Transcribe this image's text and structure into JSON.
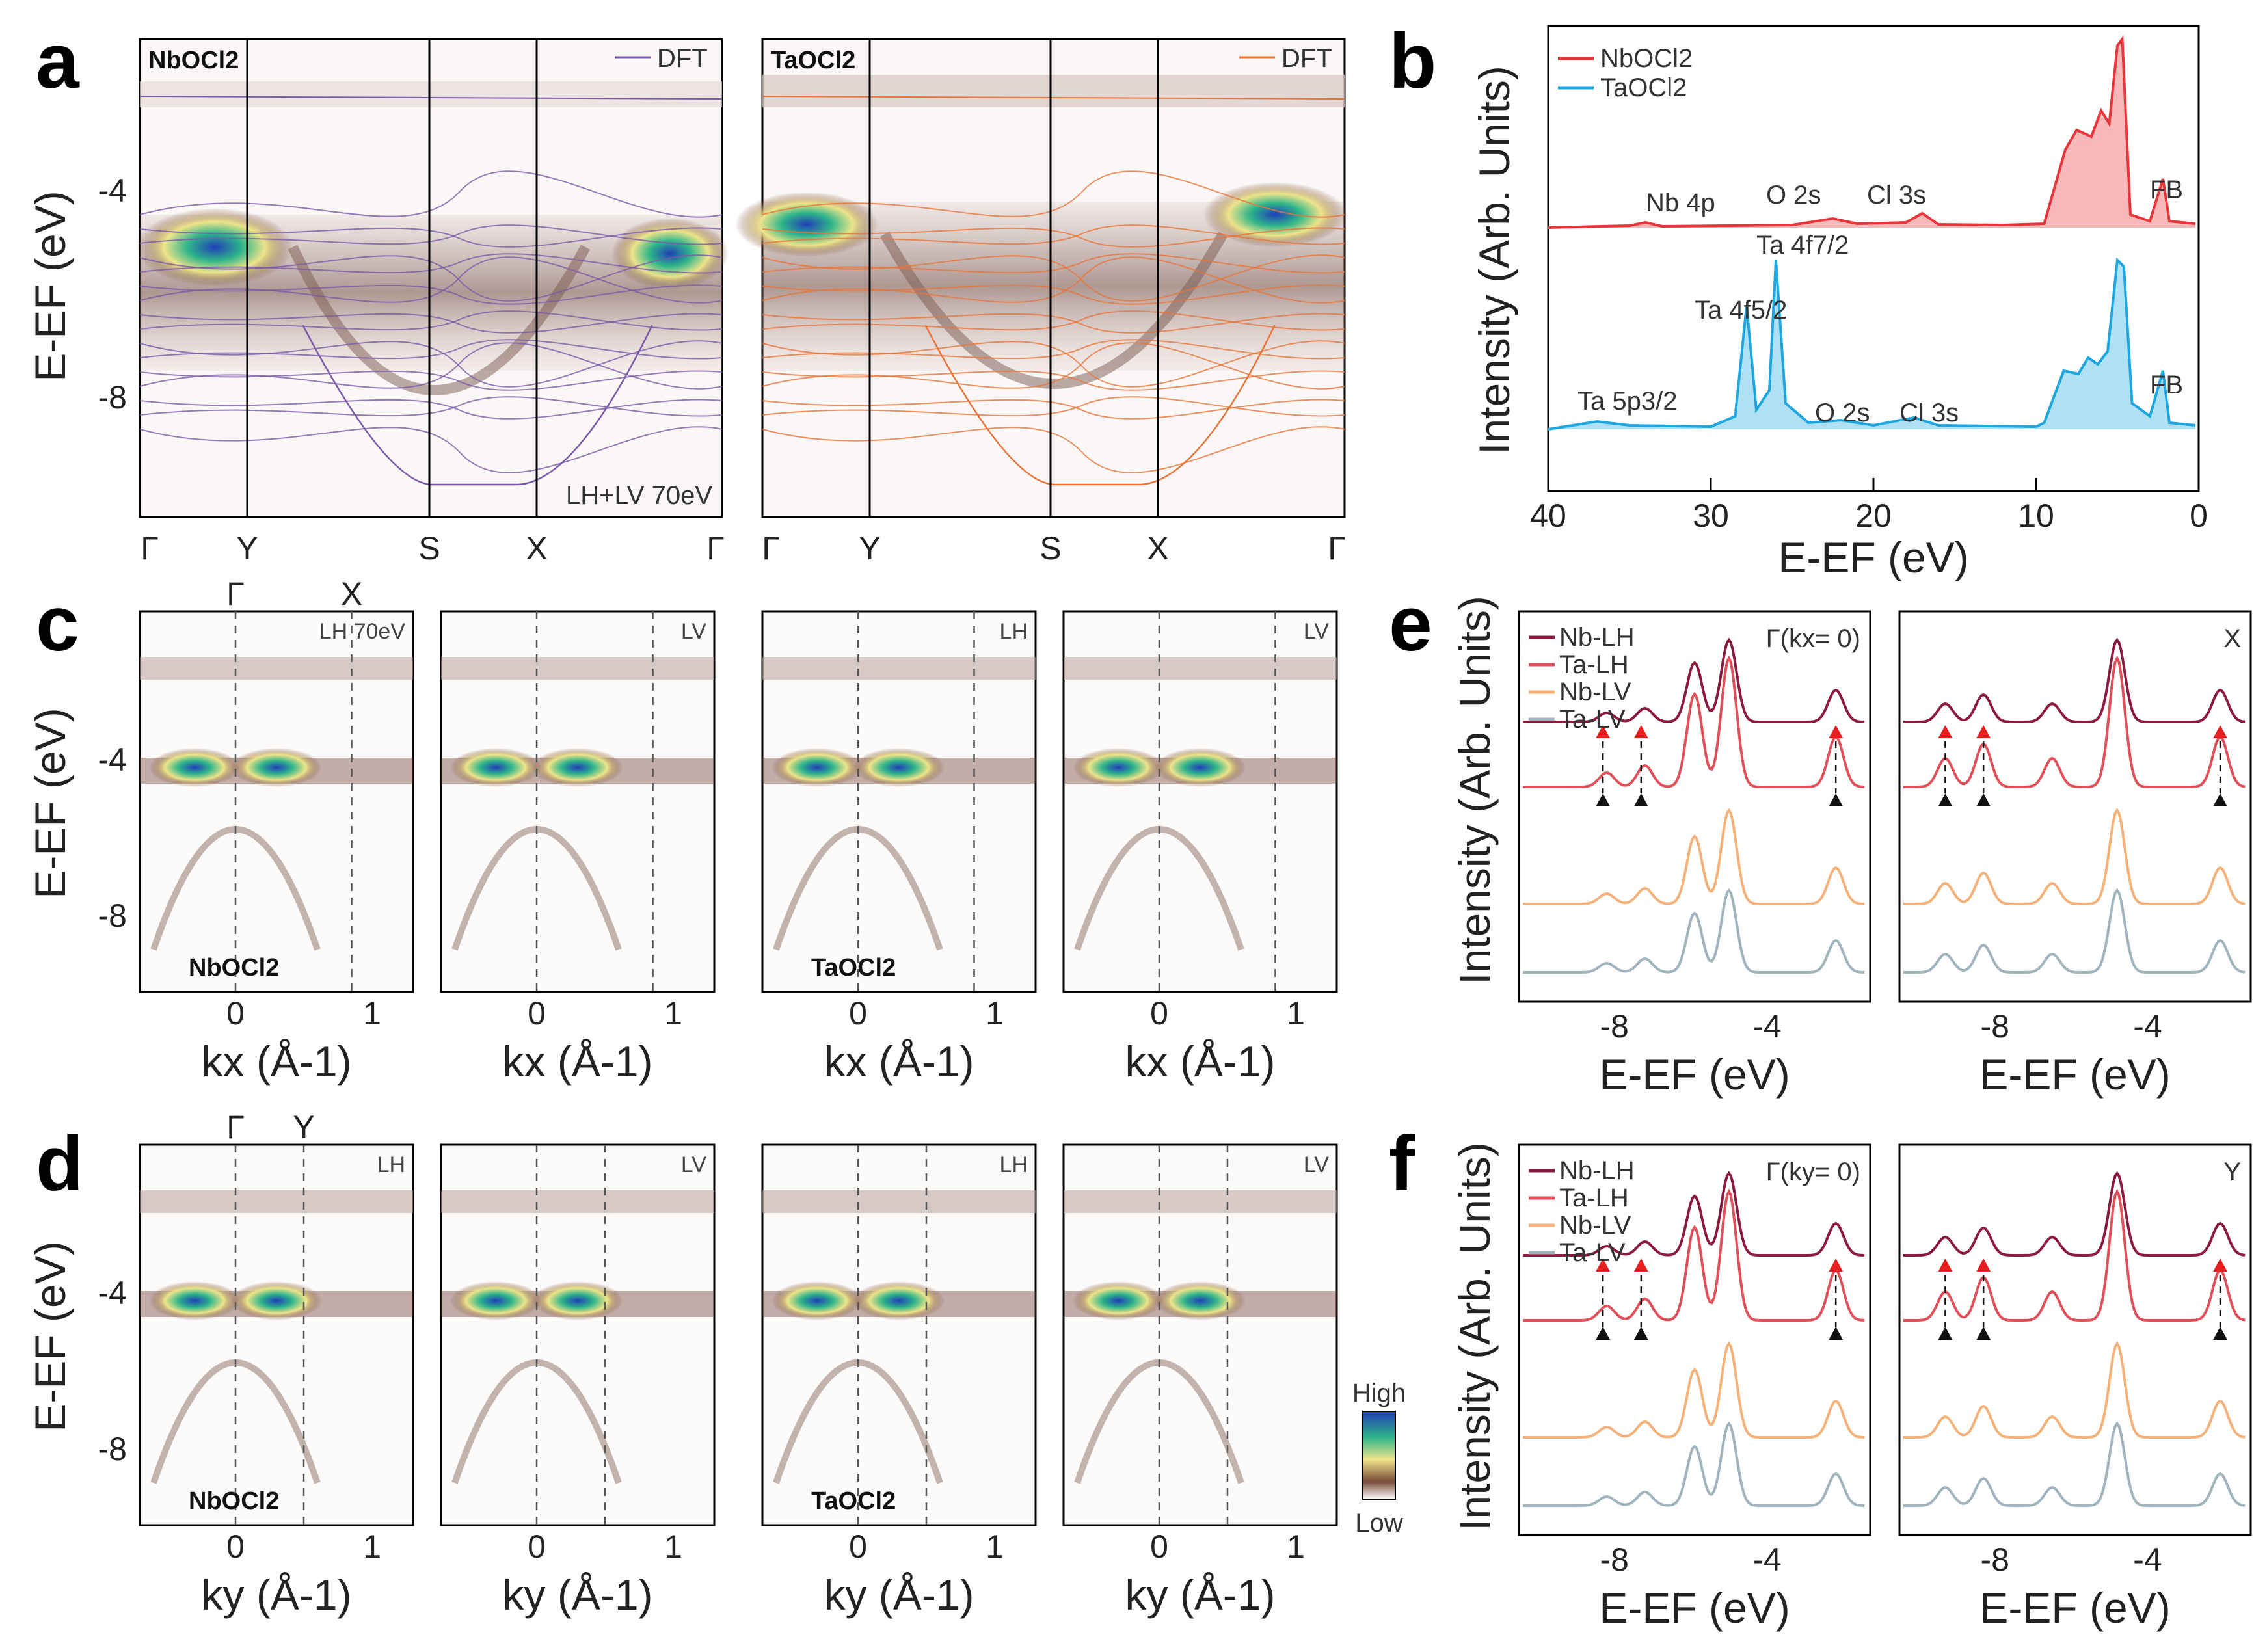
{
  "panel_labels": {
    "a": "a",
    "b": "b",
    "c": "c",
    "d": "d",
    "e": "e",
    "f": "f"
  },
  "colors": {
    "nb": "#e8353a",
    "ta": "#1ea6df",
    "dft_nb": "#7a5aa8",
    "dft_ta": "#e8743a",
    "nb_lh": "#8b1a3c",
    "ta_lh": "#e0505a",
    "nb_lv": "#f4b27a",
    "ta_lv": "#9fb4bd",
    "marker_red": "#e62020",
    "marker_black": "#111111"
  },
  "texts": {
    "nbocl2": "NbOCl2",
    "taocl2": "TaOCl2",
    "dft": "DFT",
    "lhlv70": "LH+LV 70eV",
    "lh70": "LH 70eV",
    "lh": "LH",
    "lv": "LV",
    "high": "High",
    "low": "Low",
    "gamma_x_e": "Γ(kx= 0)",
    "gamma_y_f": "Γ(ky= 0)",
    "x_label": "X",
    "y_label": "Y",
    "fb": "FB",
    "nb4p": "Nb 4p",
    "o2s": "O 2s",
    "cl3s": "Cl 3s",
    "ta4f72": "Ta 4f7/2",
    "ta4f52": "Ta 4f5/2",
    "ta5p32": "Ta 5p3/2"
  },
  "axis_labels": {
    "e_ef": "E-EF (eV)",
    "intensity": "Intensity (Arb. Units)",
    "kx": "kx (Å-1)",
    "ky": "ky (Å-1)"
  },
  "kpath": [
    "Γ",
    "Y",
    "S",
    "X",
    "Γ"
  ],
  "chart_data": [
    {
      "panel": "a",
      "type": "heatmap",
      "subpanels": [
        {
          "material": "NbOCl2",
          "dft": "DFT",
          "note": "LH+LV 70eV"
        },
        {
          "material": "TaOCl2",
          "dft": "DFT"
        }
      ],
      "x_ticks": [
        "Γ",
        "Y",
        "S",
        "X",
        "Γ"
      ],
      "y_ticks": [
        -4,
        -8
      ],
      "ylim": [
        -10.5,
        -1.0
      ],
      "ylabel": "E-EF (eV)"
    },
    {
      "panel": "b",
      "type": "line",
      "xlabel": "E-EF (eV)",
      "ylabel": "Intensity (Arb. Units)",
      "xlim": [
        40,
        0
      ],
      "x_ticks": [
        40,
        30,
        20,
        10,
        0
      ],
      "series": [
        {
          "name": "NbOCl2",
          "color": "#e8353a",
          "peaks": [
            {
              "x": 35,
              "label": "Nb 4p"
            },
            {
              "x": 22.5,
              "label": "O 2s"
            },
            {
              "x": 17,
              "label": "Cl 3s"
            },
            {
              "x": 7.5,
              "label": ""
            },
            {
              "x": 5,
              "label": ""
            },
            {
              "x": 2.2,
              "label": "FB"
            }
          ]
        },
        {
          "name": "TaOCl2",
          "color": "#1ea6df",
          "peaks": [
            {
              "x": 37,
              "label": "Ta 5p3/2"
            },
            {
              "x": 27.8,
              "label": "Ta 4f5/2"
            },
            {
              "x": 26,
              "label": "Ta 4f7/2"
            },
            {
              "x": 22,
              "label": "O 2s"
            },
            {
              "x": 17.5,
              "label": "Cl 3s"
            },
            {
              "x": 5,
              "label": ""
            },
            {
              "x": 2.2,
              "label": "FB"
            }
          ]
        }
      ]
    },
    {
      "panel": "c",
      "type": "heatmap",
      "xlabel": "kx (Å-1)",
      "ylabel": "E-EF (eV)",
      "x_ticks": [
        0,
        1
      ],
      "y_ticks": [
        -4,
        -8
      ],
      "dashed_at": [
        0,
        0.85
      ],
      "top_labels": [
        "Γ",
        "X"
      ],
      "subpanels": [
        {
          "material": "NbOCl2",
          "pol": "LH 70eV"
        },
        {
          "pol": "LV"
        },
        {
          "material": "TaOCl2",
          "pol": "LH"
        },
        {
          "pol": "LV"
        }
      ]
    },
    {
      "panel": "d",
      "type": "heatmap",
      "xlabel": "ky (Å-1)",
      "ylabel": "E-EF (eV)",
      "x_ticks": [
        0,
        1
      ],
      "y_ticks": [
        -4,
        -8
      ],
      "dashed_at": [
        0,
        0.5
      ],
      "top_labels": [
        "Γ",
        "Y"
      ],
      "colorbar": [
        "High",
        "Low"
      ],
      "subpanels": [
        {
          "material": "NbOCl2",
          "pol": "LH"
        },
        {
          "pol": "LV"
        },
        {
          "material": "TaOCl2",
          "pol": "LH"
        },
        {
          "pol": "LV"
        }
      ]
    },
    {
      "panel": "e",
      "type": "line",
      "xlabel": "E-EF (eV)",
      "ylabel": "Intensity (Arb. Units)",
      "x_ticks": [
        -8,
        -4
      ],
      "legend": [
        "Nb-LH",
        "Ta-LH",
        "Nb-LV",
        "Ta-LV"
      ],
      "subpanels": [
        {
          "title": "Γ(kx= 0)"
        },
        {
          "title": "X"
        }
      ]
    },
    {
      "panel": "f",
      "type": "line",
      "xlabel": "E-EF (eV)",
      "ylabel": "Intensity (Arb. Units)",
      "x_ticks": [
        -8,
        -4
      ],
      "legend": [
        "Nb-LH",
        "Ta-LH",
        "Nb-LV",
        "Ta-LV"
      ],
      "subpanels": [
        {
          "title": "Γ(ky= 0)"
        },
        {
          "title": "Y"
        }
      ]
    }
  ]
}
